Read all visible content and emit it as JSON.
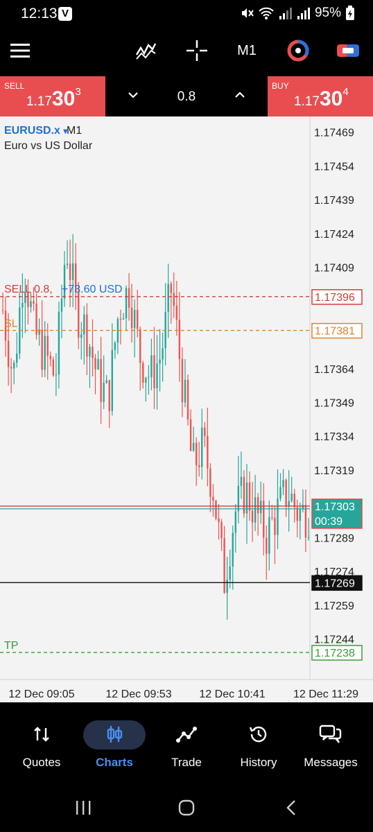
{
  "status": {
    "time": "12:13",
    "app_badge": "V",
    "battery": "95%"
  },
  "toolbar": {
    "timeframe": "M1",
    "icons": [
      "menu-icon",
      "indicators-icon",
      "crosshair-icon",
      "timeframe",
      "chart-mode-icon",
      "one-click-trading-icon"
    ]
  },
  "trade": {
    "sell_label": "SELL",
    "sell_price_main": "1.17",
    "sell_price_big": "30",
    "sell_price_sup": "3",
    "buy_label": "BUY",
    "buy_price_main": "1.17",
    "buy_price_big": "30",
    "buy_price_sup": "4",
    "volume": "0.8"
  },
  "chart": {
    "symbol": "EURUSD.x",
    "symbol_arrow": "▾",
    "timeframe": "M1",
    "description": "Euro vs US Dollar",
    "position_label": "SELL 0.8,",
    "position_profit": "+73.60 USD",
    "sl_label": "SL",
    "tp_label": "TP",
    "current_time_left": "00:39",
    "colors": {
      "bull": "#26a69a",
      "bear": "#ef5350",
      "sell_line": "#d23c3c",
      "sl_line": "#e0822a",
      "tp_line": "#3a9a3a",
      "profit": "#1e6fd8"
    }
  },
  "chart_data": {
    "type": "candlestick",
    "y_ticks": [
      "1.17469",
      "1.17454",
      "1.17439",
      "1.17424",
      "1.17409",
      "1.17364",
      "1.17349",
      "1.17334",
      "1.17319",
      "1.17289",
      "1.17274",
      "1.17259",
      "1.17244"
    ],
    "ylim": [
      1.17226,
      1.17476
    ],
    "x_ticks": [
      "12 Dec 09:05",
      "12 Dec 09:53",
      "12 Dec 10:41",
      "12 Dec 11:29"
    ],
    "price_lines": [
      {
        "name": "SELL",
        "value": 1.17396,
        "label": "1.17396",
        "style": "dashed"
      },
      {
        "name": "SL",
        "value": 1.17381,
        "label": "1.17381",
        "style": "dashed"
      },
      {
        "name": "bid",
        "value": 1.17303,
        "label": "1.17303",
        "style": "solid"
      },
      {
        "name": "low",
        "value": 1.17269,
        "label": "1.17269",
        "style": "solid"
      },
      {
        "name": "TP",
        "value": 1.17238,
        "label": "1.17238",
        "style": "dashed"
      }
    ],
    "approx_close_path": [
      1.1739,
      1.1736,
      1.1741,
      1.1738,
      1.1737,
      1.1736,
      1.1742,
      1.1739,
      1.1738,
      1.1736,
      1.1735,
      1.1739,
      1.174,
      1.1737,
      1.1736,
      1.1737,
      1.174,
      1.1736,
      1.1732,
      1.1733,
      1.1731,
      1.1727,
      1.173,
      1.1731,
      1.173,
      1.1729,
      1.173,
      1.1731,
      1.173,
      1.173
    ]
  },
  "nav": {
    "items": [
      {
        "label": "Quotes",
        "icon": "quotes-icon"
      },
      {
        "label": "Charts",
        "icon": "charts-icon"
      },
      {
        "label": "Trade",
        "icon": "trade-icon"
      },
      {
        "label": "History",
        "icon": "history-icon"
      },
      {
        "label": "Messages",
        "icon": "messages-icon"
      }
    ]
  }
}
